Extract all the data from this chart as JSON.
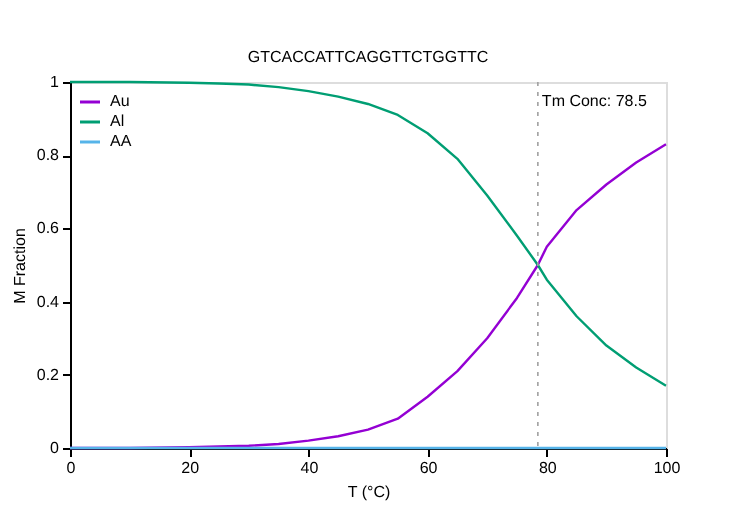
{
  "chart_data": {
    "type": "line",
    "title": "GTCACCATTCAGGTTCTGGTTC",
    "xlabel": "T (°C)",
    "ylabel": "M Fraction",
    "x": [
      0,
      10,
      20,
      25,
      30,
      35,
      40,
      45,
      50,
      55,
      60,
      65,
      70,
      75,
      78.5,
      80,
      85,
      90,
      95,
      100
    ],
    "series": [
      {
        "name": "Au",
        "color": "#9400d3",
        "values": [
          0,
          0,
          0.002,
          0.004,
          0.006,
          0.011,
          0.02,
          0.032,
          0.05,
          0.08,
          0.14,
          0.21,
          0.3,
          0.41,
          0.5,
          0.55,
          0.65,
          0.72,
          0.78,
          0.83
        ]
      },
      {
        "name": "Al",
        "color": "#009e73",
        "values": [
          1,
          1,
          0.998,
          0.996,
          0.993,
          0.986,
          0.975,
          0.96,
          0.94,
          0.91,
          0.86,
          0.79,
          0.69,
          0.58,
          0.5,
          0.46,
          0.36,
          0.28,
          0.22,
          0.17
        ]
      },
      {
        "name": "AA",
        "color": "#56b4e9",
        "values": [
          0,
          0,
          0,
          0,
          0,
          0,
          0,
          0,
          0,
          0,
          0,
          0,
          0,
          0,
          0,
          0,
          0,
          0,
          0,
          0
        ]
      }
    ],
    "xlim": [
      0,
      100
    ],
    "xticks": [
      0,
      20,
      40,
      60,
      80,
      100
    ],
    "ylim": [
      0,
      1
    ],
    "yticks": [
      0,
      0.2,
      0.4,
      0.6,
      0.8,
      1
    ],
    "ref_lines": [
      {
        "axis": "x",
        "value": 78.5,
        "label": "Tm Conc: 78.5",
        "color": "#a0a0a0",
        "line_style": "dotted"
      }
    ],
    "legend": "top left",
    "grid": false,
    "marker": "none",
    "line_style": "solid"
  }
}
